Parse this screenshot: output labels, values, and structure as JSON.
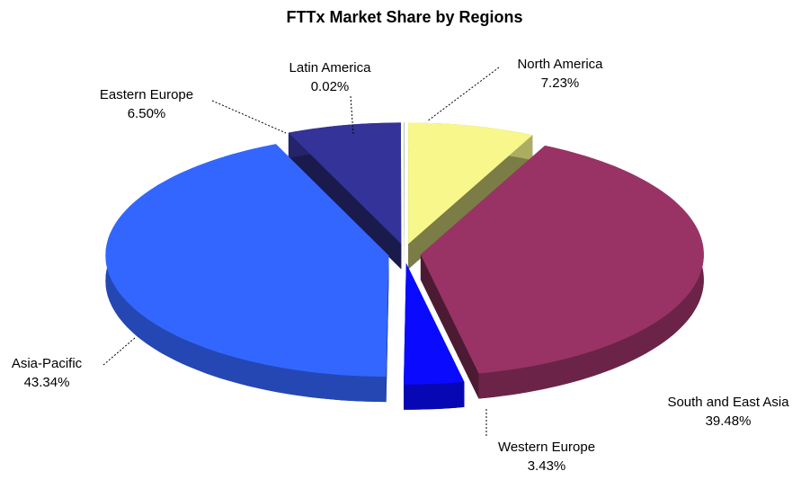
{
  "chart_data": {
    "type": "pie",
    "title": "FTTx Market Share by Regions",
    "categories": [
      "North America",
      "South and East Asia",
      "Western Europe",
      "Asia-Pacific",
      "Eastern Europe",
      "Latin America"
    ],
    "values": [
      7.23,
      39.48,
      3.43,
      43.34,
      6.5,
      0.02
    ],
    "value_labels": [
      "7.23%",
      "39.48%",
      "3.43%",
      "43.34%",
      "6.50%",
      "0.02%"
    ],
    "colors": [
      "#f7f78c",
      "#993366",
      "#0a0aff",
      "#3366ff",
      "#333399",
      "#6b8f6b"
    ]
  }
}
